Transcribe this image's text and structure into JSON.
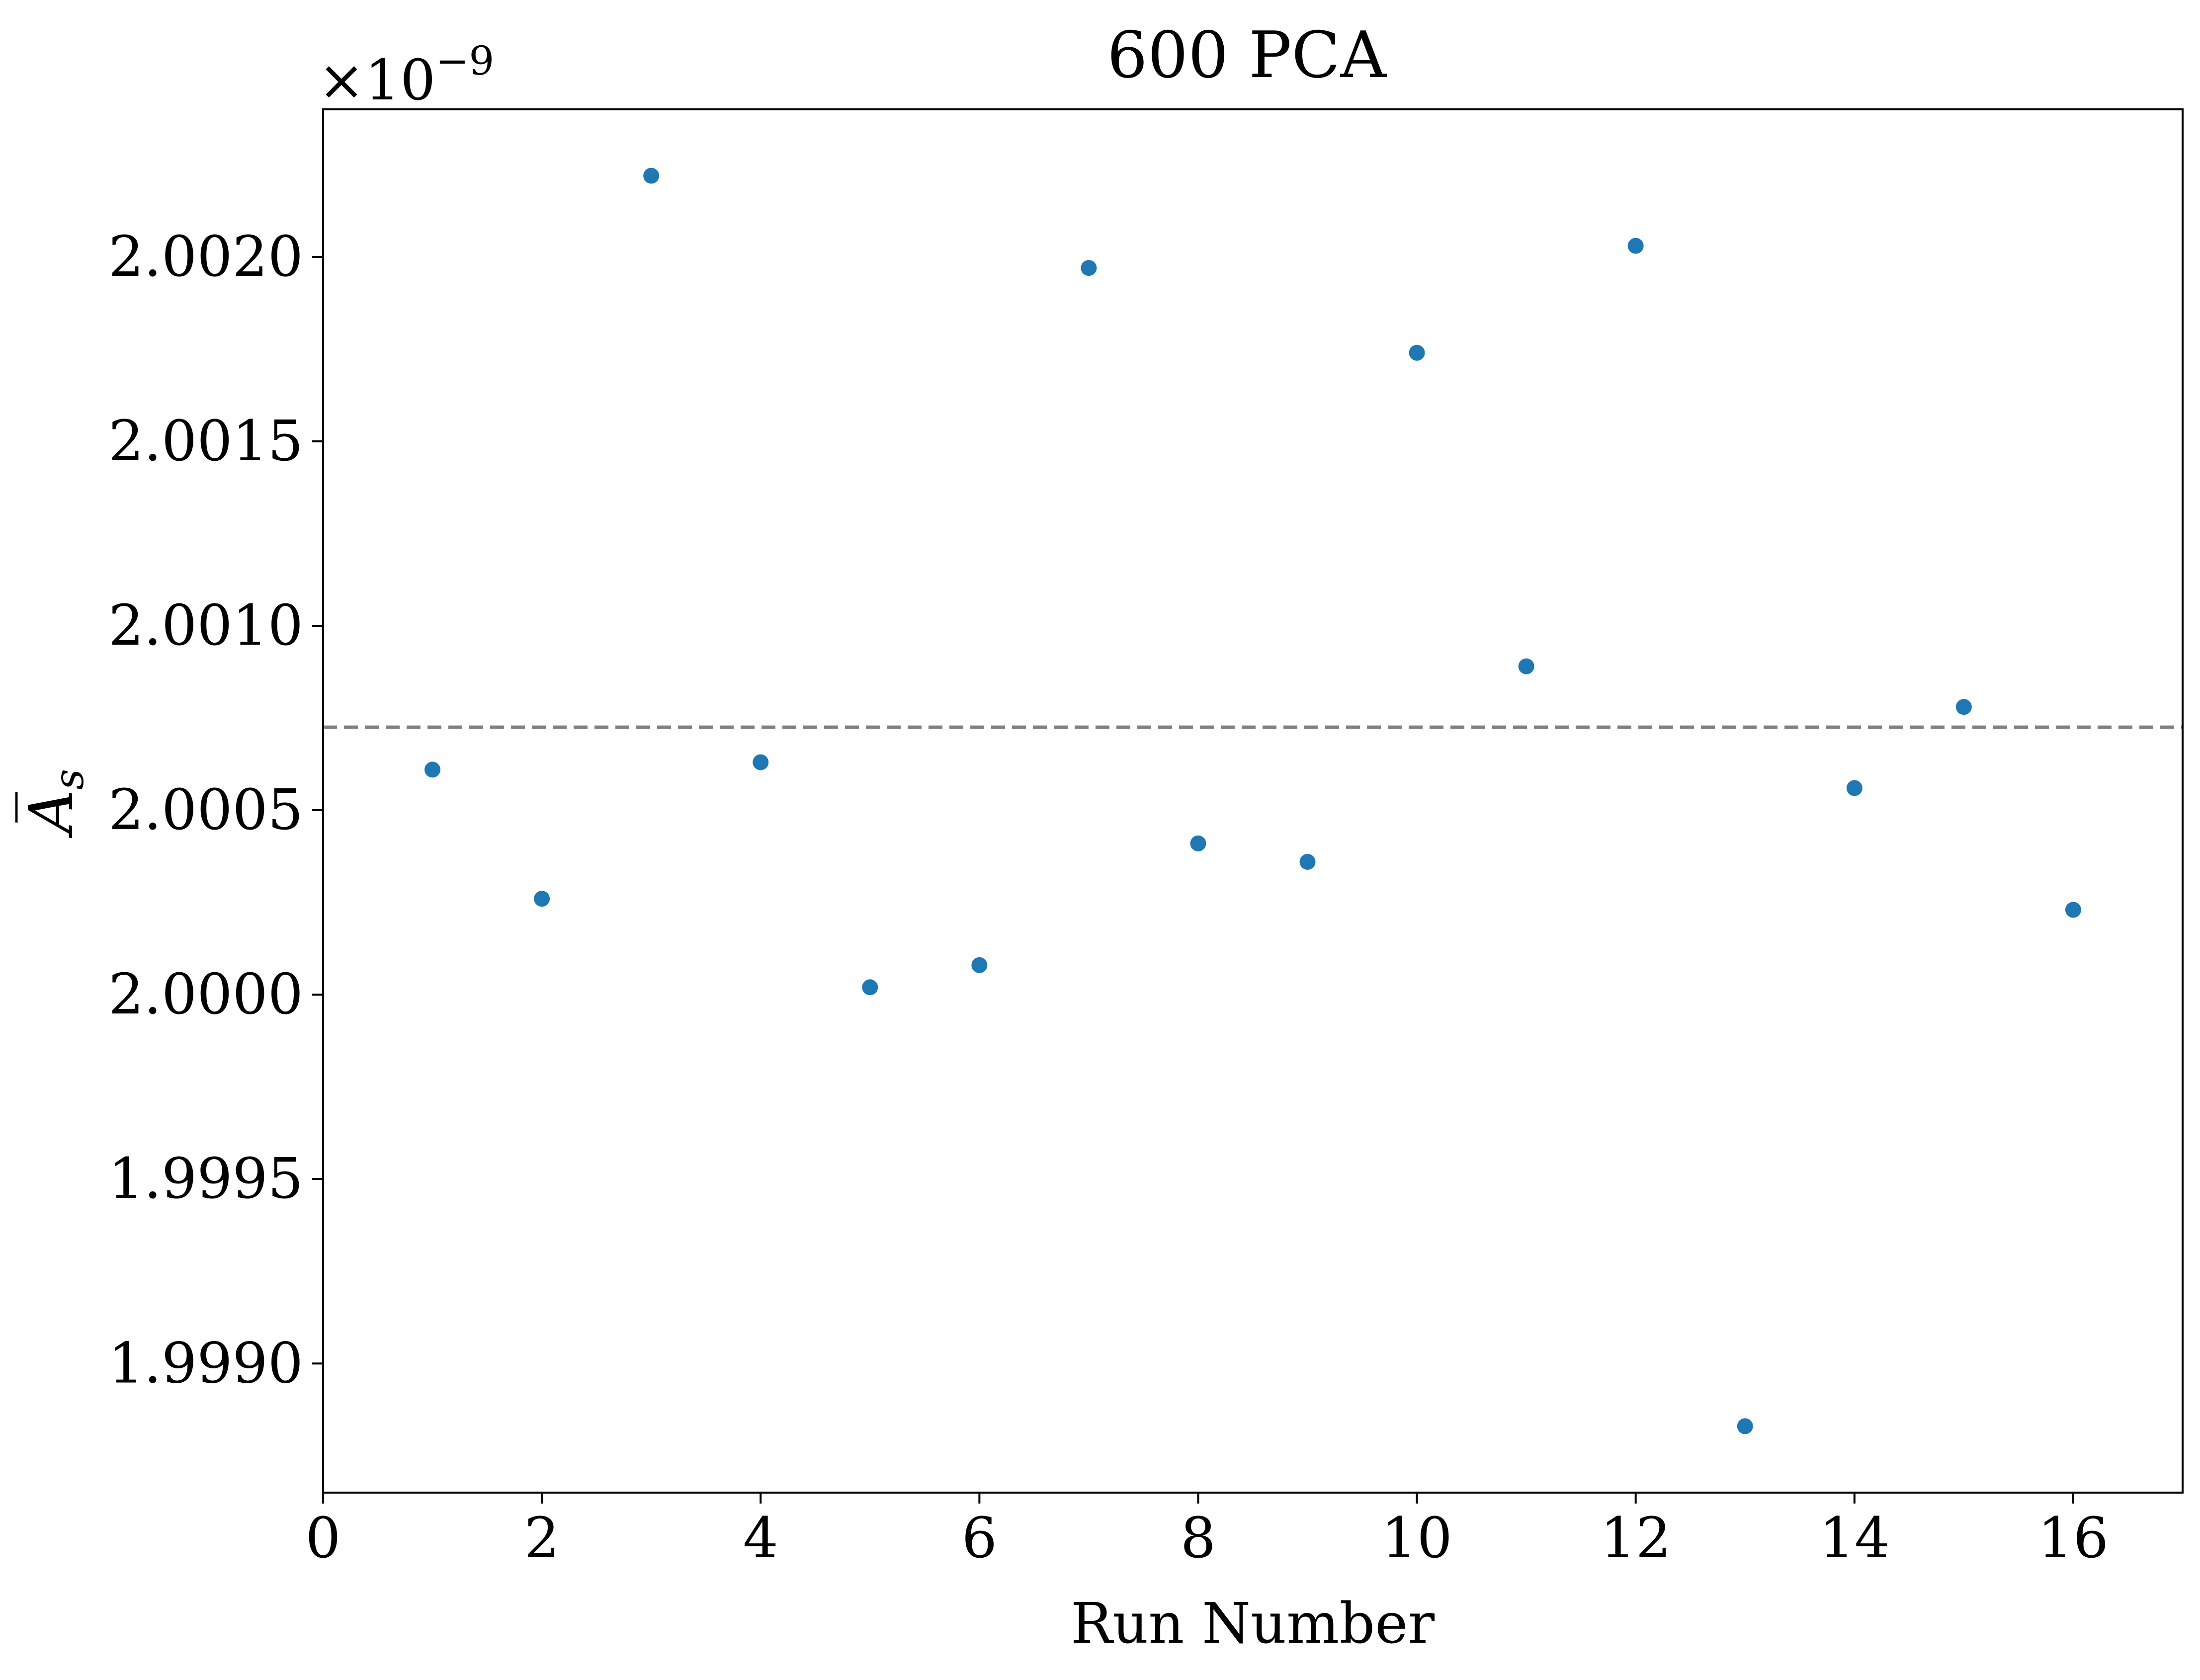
{
  "chart_data": {
    "type": "scatter",
    "title": "600 PCA",
    "xlabel": "Run Number",
    "ylabel": "A̅",
    "ylabel_subscript": "s",
    "y_offset_text": "×10",
    "y_offset_exponent": "−9",
    "xlim": [
      0,
      17
    ],
    "ylim": [
      1.99865,
      2.0024
    ],
    "x_ticks": [
      0,
      2,
      4,
      6,
      8,
      10,
      12,
      14,
      16
    ],
    "x_tick_labels": [
      "0",
      "2",
      "4",
      "6",
      "8",
      "10",
      "12",
      "14",
      "16"
    ],
    "y_ticks": [
      1.999,
      1.9995,
      2.0,
      2.0005,
      2.001,
      2.0015,
      2.002
    ],
    "y_tick_labels": [
      "1.9990",
      "1.9995",
      "2.0000",
      "2.0005",
      "2.0010",
      "2.0015",
      "2.0020"
    ],
    "grid": false,
    "colors": {
      "points": "#1f77b4",
      "reference_line": "#808080",
      "axes": "#000000"
    },
    "reference_line": {
      "y": 2.000725,
      "style": "dashed"
    },
    "series": [
      {
        "x": [
          1,
          2,
          3,
          4,
          5,
          6,
          7,
          8,
          9,
          10,
          11,
          12,
          13,
          14,
          15,
          16
        ],
        "y": [
          2.00061,
          2.00026,
          2.00222,
          2.00063,
          2.00002,
          2.00008,
          2.00197,
          2.00041,
          2.00036,
          2.00174,
          2.00089,
          2.00203,
          1.99883,
          2.00056,
          2.00078,
          2.00023
        ]
      }
    ]
  }
}
